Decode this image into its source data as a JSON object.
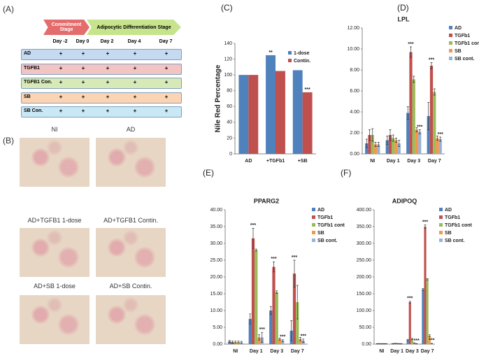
{
  "schematic": {
    "panel_label": "(A)",
    "stages": [
      "Commitment Stage",
      "Adipocytic Differentiation Stage"
    ],
    "days": [
      "Day -2",
      "Day 0",
      "Day 2",
      "Day 4",
      "Day 7"
    ],
    "rows": [
      {
        "name": "AD",
        "color": "#c5d9f1",
        "cells": [
          "+",
          "+",
          "+",
          "+",
          "+"
        ]
      },
      {
        "name": "TGFB1",
        "color": "#f2c4c4",
        "cells": [
          "+",
          "+",
          "+",
          "+",
          "+"
        ]
      },
      {
        "name": "TGFB1 Con.",
        "color": "#d8e9b8",
        "cells": [
          "+",
          "+",
          "+",
          "+",
          "+"
        ]
      },
      {
        "name": "SB",
        "color": "#fbd4b4",
        "cells": [
          "+",
          "+",
          "+",
          "+",
          "+"
        ]
      },
      {
        "name": "SB Con.",
        "color": "#c9e8f5",
        "cells": [
          "+",
          "+",
          "+",
          "+",
          "+"
        ]
      }
    ]
  },
  "micrographs": {
    "panel_label": "(B)",
    "labels": [
      "NI",
      "AD",
      "AD+TGFB1 1-dose",
      "AD+TGFB1 Contin.",
      "AD+SB 1-dose",
      "AD+SB Contin."
    ]
  },
  "chart_data": [
    {
      "type": "bar",
      "panel_label": "(C)",
      "ylabel": "Nile Red Percentage",
      "categories": [
        "AD",
        "+TGFb1",
        "+SB"
      ],
      "series": [
        {
          "name": "1-dose",
          "color": "#4f81bd",
          "values": [
            100,
            125,
            106
          ],
          "significance": [
            null,
            "**",
            null
          ]
        },
        {
          "name": "Contin.",
          "color": "#c0504d",
          "values": [
            100,
            105,
            78
          ],
          "significance": [
            null,
            null,
            "***"
          ]
        }
      ],
      "ylim": [
        0,
        140
      ],
      "yticks": [
        0,
        20,
        40,
        60,
        80,
        100,
        120,
        140
      ],
      "grid": false,
      "legend": "upper right"
    },
    {
      "type": "bar",
      "panel_label": "(D)",
      "title": "LPL",
      "categories": [
        "NI",
        "Day 1",
        "Day 3",
        "Day 7"
      ],
      "series": [
        {
          "name": "AD",
          "color": "#4f81bd",
          "values": [
            1.0,
            1.3,
            3.9,
            3.6
          ],
          "errors": [
            0.4,
            0.4,
            0.6,
            1.3
          ],
          "significance": [
            null,
            null,
            null,
            null
          ]
        },
        {
          "name": "TGFb1",
          "color": "#c0504d",
          "values": [
            1.8,
            1.8,
            9.7,
            8.4
          ],
          "errors": [
            0.5,
            0.5,
            0.5,
            0.3
          ],
          "significance": [
            null,
            null,
            "***",
            "***"
          ]
        },
        {
          "name": "TGFb1 cont",
          "color": "#9bbb59",
          "values": [
            1.8,
            1.5,
            7.1,
            5.9
          ],
          "errors": [
            0.6,
            0.3,
            0.3,
            0.3
          ],
          "significance": [
            null,
            null,
            null,
            null
          ]
        },
        {
          "name": "SB",
          "color": "#f79646",
          "values": [
            0.9,
            1.3,
            2.3,
            1.5
          ],
          "errors": [
            0.2,
            0.2,
            0.2,
            0.2
          ],
          "significance": [
            null,
            null,
            null,
            null
          ]
        },
        {
          "name": "SB cont.",
          "color": "#95b3d7",
          "values": [
            0.9,
            1.0,
            2.1,
            1.4
          ],
          "errors": [
            0.2,
            0.3,
            0.2,
            0.2
          ],
          "significance": [
            null,
            null,
            "***",
            "***"
          ]
        }
      ],
      "ylim": [
        0,
        12
      ],
      "yticks": [
        {
          "value": 0,
          "label": "0.00"
        },
        {
          "value": 2,
          "label": "2.00"
        },
        {
          "value": 4,
          "label": "4.00"
        },
        {
          "value": 6,
          "label": "6.00"
        },
        {
          "value": 8,
          "label": "8.00"
        },
        {
          "value": 10,
          "label": "10.00"
        },
        {
          "value": 12,
          "label": "12.00"
        }
      ],
      "grid": false,
      "legend": "right"
    },
    {
      "type": "bar",
      "panel_label": "(E)",
      "title": "PPARG2",
      "categories": [
        "NI",
        "Day 1",
        "Day 3",
        "Day 7"
      ],
      "series": [
        {
          "name": "AD",
          "color": "#4f81bd",
          "values": [
            0.8,
            7.5,
            10,
            4
          ],
          "errors": [
            0.3,
            1.5,
            1.2,
            3
          ],
          "significance": [
            null,
            null,
            null,
            null
          ]
        },
        {
          "name": "TGFb1",
          "color": "#c0504d",
          "values": [
            0.6,
            31.5,
            23,
            21
          ],
          "errors": [
            0.3,
            3,
            1.5,
            4
          ],
          "significance": [
            null,
            "***",
            "***",
            "***"
          ]
        },
        {
          "name": "TGFb1 cont",
          "color": "#9bbb59",
          "values": [
            0.6,
            28,
            15.5,
            12.5
          ],
          "errors": [
            0.3,
            0.3,
            0.4,
            5
          ],
          "significance": [
            null,
            null,
            null,
            null
          ]
        },
        {
          "name": "SB",
          "color": "#f79646",
          "values": [
            0.6,
            2,
            1.5,
            1.5
          ],
          "errors": [
            0.3,
            0.8,
            0.3,
            0.5
          ],
          "significance": [
            null,
            null,
            null,
            null
          ]
        },
        {
          "name": "SB cont.",
          "color": "#95b3d7",
          "values": [
            0.5,
            2,
            1,
            1
          ],
          "errors": [
            0.3,
            1.5,
            0.3,
            0.5
          ],
          "significance": [
            null,
            "***",
            "***",
            "***"
          ]
        }
      ],
      "ylim": [
        0,
        40
      ],
      "yticks": [
        {
          "value": 0,
          "label": "0.00"
        },
        {
          "value": 5,
          "label": "5.00"
        },
        {
          "value": 10,
          "label": "10.00"
        },
        {
          "value": 15,
          "label": "15.00"
        },
        {
          "value": 20,
          "label": "20.00"
        },
        {
          "value": 25,
          "label": "25.00"
        },
        {
          "value": 30,
          "label": "30.00"
        },
        {
          "value": 35,
          "label": "35.00"
        },
        {
          "value": 40,
          "label": "40.00"
        }
      ],
      "grid": false,
      "legend": "right"
    },
    {
      "type": "bar",
      "panel_label": "(F)",
      "title": "ADIPOQ",
      "categories": [
        "NI",
        "Day 1",
        "Day 3",
        "Day 7"
      ],
      "series": [
        {
          "name": "AD",
          "color": "#4f81bd",
          "values": [
            1,
            1,
            12,
            163
          ],
          "errors": [
            0.5,
            0.5,
            2,
            3
          ],
          "significance": [
            null,
            null,
            null,
            null
          ]
        },
        {
          "name": "TGFb1",
          "color": "#c0504d",
          "values": [
            1,
            2,
            125,
            350
          ],
          "errors": [
            0.5,
            0.5,
            3,
            5
          ],
          "significance": [
            null,
            null,
            "***",
            "***"
          ]
        },
        {
          "name": "TGFb1 cont",
          "color": "#9bbb59",
          "values": [
            1,
            2,
            15,
            193
          ],
          "errors": [
            0.5,
            0.5,
            2,
            2
          ],
          "significance": [
            null,
            null,
            null,
            null
          ]
        },
        {
          "name": "SB",
          "color": "#f79646",
          "values": [
            1,
            1,
            3,
            25
          ],
          "errors": [
            0.5,
            0.5,
            1,
            3
          ],
          "significance": [
            null,
            null,
            null,
            null
          ]
        },
        {
          "name": "SB cont.",
          "color": "#95b3d7",
          "values": [
            1,
            1,
            1,
            2
          ],
          "errors": [
            0.5,
            0.5,
            0.5,
            0.5
          ],
          "significance": [
            null,
            null,
            "***",
            "***"
          ]
        }
      ],
      "ylim": [
        0,
        400
      ],
      "yticks": [
        {
          "value": 0,
          "label": "0.00"
        },
        {
          "value": 50,
          "label": "50.00"
        },
        {
          "value": 100,
          "label": "100.00"
        },
        {
          "value": 150,
          "label": "150.00"
        },
        {
          "value": 200,
          "label": "200.00"
        },
        {
          "value": 250,
          "label": "250.00"
        },
        {
          "value": 300,
          "label": "300.00"
        },
        {
          "value": 350,
          "label": "350.00"
        },
        {
          "value": 400,
          "label": "400.00"
        }
      ],
      "grid": false,
      "legend": "right"
    }
  ]
}
